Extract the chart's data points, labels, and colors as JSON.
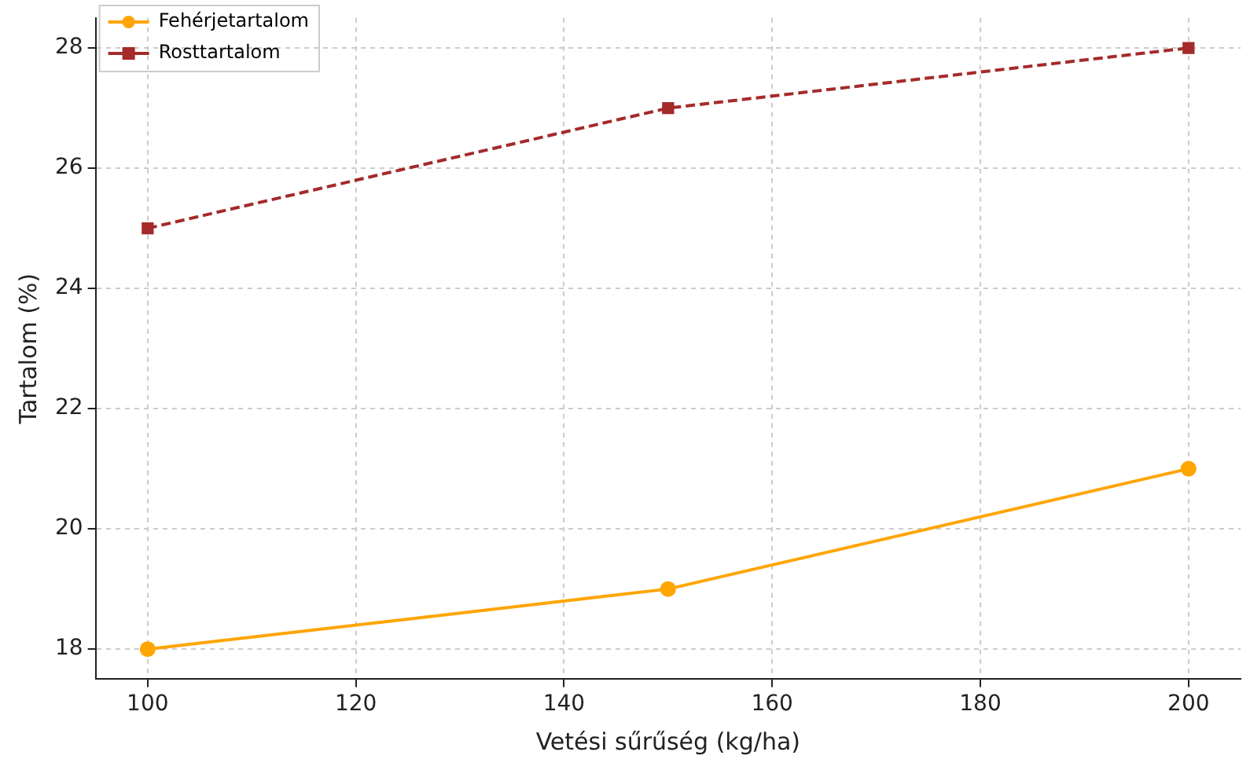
{
  "chart_data": {
    "type": "line",
    "xlabel": "Vetési sűrűség (kg/ha)",
    "ylabel": "Tartalom (%)",
    "x": [
      100,
      150,
      200
    ],
    "series": [
      {
        "name": "Fehérjetartalom",
        "color": "#ffa500",
        "values": [
          18,
          19,
          21
        ],
        "marker": "circle",
        "line_style": "solid"
      },
      {
        "name": "Rosttartalom",
        "color": "#a52a2a",
        "values": [
          25,
          27,
          28
        ],
        "marker": "square",
        "line_style": "dashed"
      }
    ],
    "xlim": [
      95,
      205
    ],
    "xticks": [
      100,
      120,
      140,
      160,
      180,
      200
    ],
    "ylim": [
      17.5,
      28.5
    ],
    "yticks": [
      18,
      20,
      22,
      24,
      26,
      28
    ],
    "grid": true,
    "legend": "top left"
  }
}
